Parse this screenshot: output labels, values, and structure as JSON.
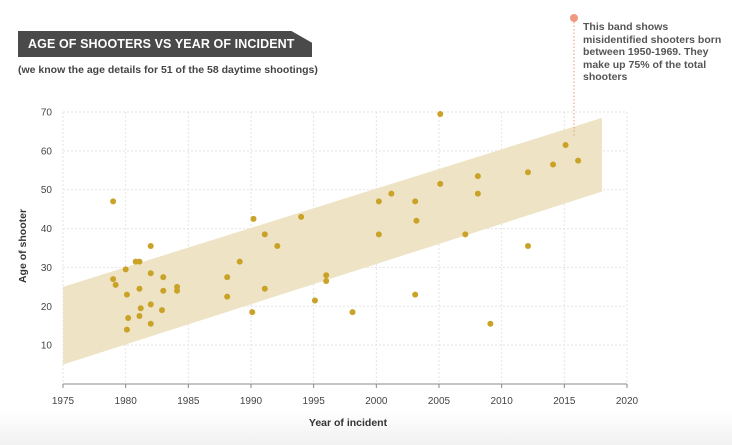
{
  "header": {
    "title": "AGE OF SHOOTERS VS YEAR OF INCIDENT",
    "subtitle": "(we know the age details for 51 of the 58 daytime shootings)"
  },
  "annotation": {
    "text": "This band shows misidentified shooters born between 1950-1969. They make up 75% of the total shooters"
  },
  "colors": {
    "point": "#c9a227",
    "band": "#ede3c2",
    "annotation_marker": "#ef9a7e",
    "grid": "#e3e3e3",
    "banner": "#4a4a4a"
  },
  "chart_data": {
    "type": "scatter",
    "title": "AGE OF SHOOTERS VS YEAR OF INCIDENT",
    "subtitle": "(we know the age details for 51 of the 58 daytime shootings)",
    "xlabel": "Year of incident",
    "ylabel": "Age of shooter",
    "xlim": [
      1975,
      2020
    ],
    "ylim": [
      0,
      70
    ],
    "xticks": [
      1975,
      1980,
      1985,
      1990,
      1995,
      2000,
      2005,
      2010,
      2015,
      2020
    ],
    "yticks": [
      10,
      20,
      30,
      40,
      50,
      60,
      70
    ],
    "grid": true,
    "band": {
      "x": [
        1975,
        2018
      ],
      "lower": [
        5,
        49.5
      ],
      "upper": [
        25,
        68.5
      ]
    },
    "points": [
      {
        "x": 1979,
        "y": 47
      },
      {
        "x": 1979,
        "y": 27
      },
      {
        "x": 1979.2,
        "y": 25.5
      },
      {
        "x": 1980,
        "y": 29.5
      },
      {
        "x": 1980.1,
        "y": 23
      },
      {
        "x": 1980.2,
        "y": 17
      },
      {
        "x": 1980.1,
        "y": 14
      },
      {
        "x": 1980.8,
        "y": 31.5
      },
      {
        "x": 1981.1,
        "y": 31.5
      },
      {
        "x": 1981.1,
        "y": 24.5
      },
      {
        "x": 1981.2,
        "y": 19.5
      },
      {
        "x": 1981.1,
        "y": 17.5
      },
      {
        "x": 1982,
        "y": 35.5
      },
      {
        "x": 1982,
        "y": 28.5
      },
      {
        "x": 1982,
        "y": 20.5
      },
      {
        "x": 1982,
        "y": 15.5
      },
      {
        "x": 1983,
        "y": 27.5
      },
      {
        "x": 1983,
        "y": 24
      },
      {
        "x": 1982.9,
        "y": 19
      },
      {
        "x": 1984.1,
        "y": 25
      },
      {
        "x": 1984.1,
        "y": 24
      },
      {
        "x": 1988.1,
        "y": 27.5
      },
      {
        "x": 1988.1,
        "y": 22.5
      },
      {
        "x": 1989.1,
        "y": 31.5
      },
      {
        "x": 1990.2,
        "y": 42.5
      },
      {
        "x": 1990.1,
        "y": 18.5
      },
      {
        "x": 1991.1,
        "y": 38.5
      },
      {
        "x": 1991.1,
        "y": 24.5
      },
      {
        "x": 1992.1,
        "y": 35.5
      },
      {
        "x": 1994,
        "y": 43
      },
      {
        "x": 1995.1,
        "y": 21.5
      },
      {
        "x": 1996,
        "y": 28
      },
      {
        "x": 1996,
        "y": 26.5
      },
      {
        "x": 1998.1,
        "y": 18.5
      },
      {
        "x": 2000.2,
        "y": 47
      },
      {
        "x": 2000.2,
        "y": 38.5
      },
      {
        "x": 2001.2,
        "y": 49
      },
      {
        "x": 2003.1,
        "y": 47
      },
      {
        "x": 2003.2,
        "y": 42
      },
      {
        "x": 2003.1,
        "y": 23
      },
      {
        "x": 2005.1,
        "y": 69.5
      },
      {
        "x": 2005.1,
        "y": 51.5
      },
      {
        "x": 2007.1,
        "y": 38.5
      },
      {
        "x": 2008.1,
        "y": 53.5
      },
      {
        "x": 2008.1,
        "y": 49
      },
      {
        "x": 2009.1,
        "y": 15.5
      },
      {
        "x": 2012.1,
        "y": 54.5
      },
      {
        "x": 2012.1,
        "y": 35.5
      },
      {
        "x": 2014.1,
        "y": 56.5
      },
      {
        "x": 2015.1,
        "y": 61.5
      },
      {
        "x": 2016.1,
        "y": 57.5
      }
    ]
  }
}
